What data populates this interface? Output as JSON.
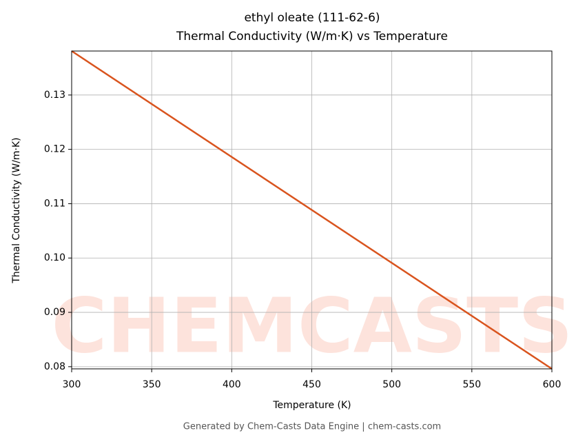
{
  "chart_data": {
    "type": "line",
    "title": "ethyl oleate (111-62-6)",
    "subtitle": "Thermal Conductivity (W/m·K) vs Temperature",
    "x_label": "Temperature (K)",
    "y_label": "Thermal Conductivity (W/m·K)",
    "footer": "Generated by Chem-Casts Data Engine | chem-casts.com",
    "watermark": "CHEMCASTS",
    "x": [
      300,
      600
    ],
    "series": [
      {
        "name": "Thermal Conductivity",
        "color": "#d9541e",
        "values": [
          0.1381,
          0.0796
        ]
      }
    ],
    "xlim": [
      300,
      600
    ],
    "xticks": [
      300,
      350,
      400,
      450,
      500,
      550,
      600
    ],
    "ylim": [
      0.0796,
      0.1381
    ],
    "yticks": [
      0.08,
      0.09,
      {
        "value": 0.1,
        "label": "0.10"
      },
      0.11,
      0.12,
      0.13
    ],
    "grid": true
  }
}
